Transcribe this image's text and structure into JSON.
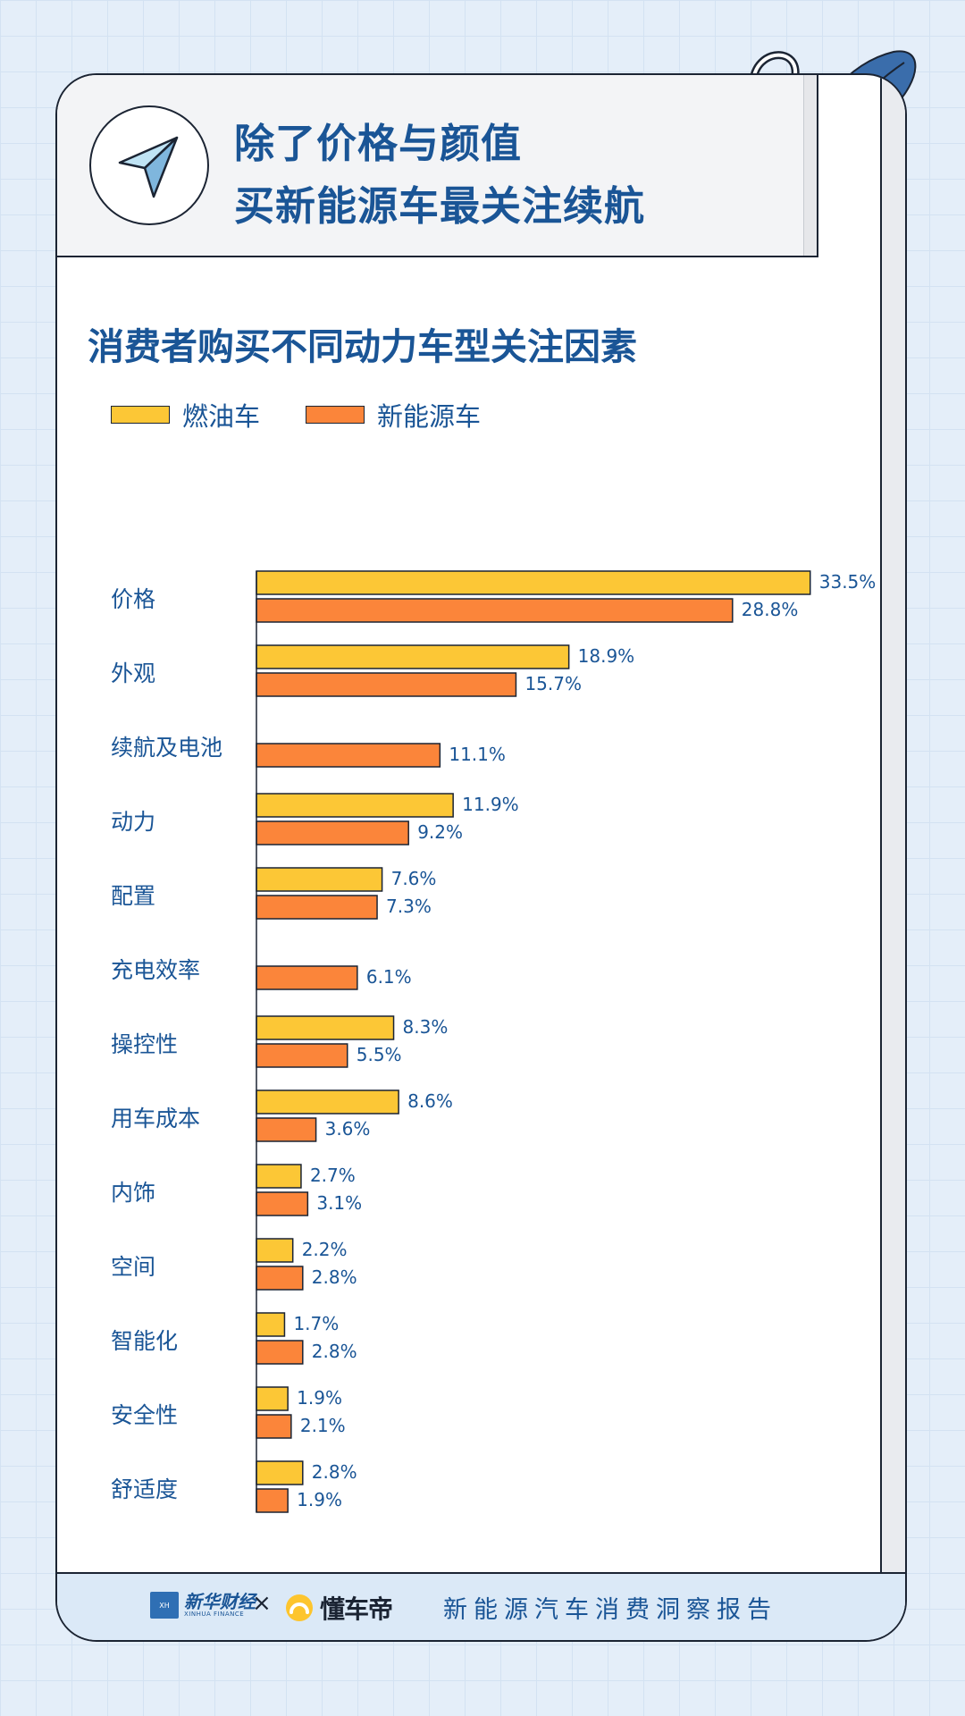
{
  "title_line1": "除了价格与颜值",
  "title_line2": "买新能源车最关注续航",
  "footer": {
    "brand1_cn": "新华财经",
    "brand1_en": "XINHUA FINANCE",
    "times": "×",
    "brand2": "懂车帝",
    "report": "新能源汽车消费洞察报告"
  },
  "colors": {
    "fuel": "#fcc736",
    "nev": "#fb853a",
    "title": "#1a5596",
    "outline": "#1b2433"
  },
  "icons": [
    "paper-plane-icon",
    "binder-ring-icon",
    "leaf-icon",
    "chevron-icon"
  ],
  "chart_data": {
    "type": "bar",
    "orientation": "horizontal",
    "title": "消费者购买不同动力车型关注因素",
    "categories": [
      "价格",
      "外观",
      "续航及电池",
      "动力",
      "配置",
      "充电效率",
      "操控性",
      "用车成本",
      "内饰",
      "空间",
      "智能化",
      "安全性",
      "舒适度"
    ],
    "series": [
      {
        "name": "燃油车",
        "color": "#fcc736",
        "values": [
          33.5,
          18.9,
          null,
          11.9,
          7.6,
          null,
          8.3,
          8.6,
          2.7,
          2.2,
          1.7,
          1.9,
          2.8
        ]
      },
      {
        "name": "新能源车",
        "color": "#fb853a",
        "values": [
          28.8,
          15.7,
          11.1,
          9.2,
          7.3,
          6.1,
          5.5,
          3.6,
          3.1,
          2.8,
          2.8,
          2.1,
          1.9
        ]
      }
    ],
    "value_suffix": "%",
    "legend_position": "top-left",
    "grid": false
  }
}
